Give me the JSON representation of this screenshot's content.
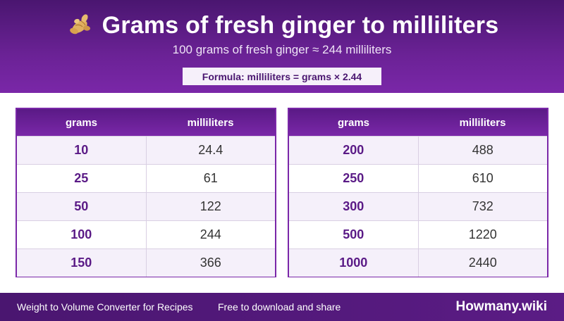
{
  "header": {
    "icon": "ginger-root-icon",
    "title": "Grams of fresh ginger to milliliters",
    "subtitle": "100 grams of fresh ginger ≈ 244 milliliters",
    "formula": "Formula: milliliters = grams × 2.44"
  },
  "tables": [
    {
      "headers": [
        "grams",
        "milliliters"
      ],
      "rows": [
        [
          "10",
          "24.4"
        ],
        [
          "25",
          "61"
        ],
        [
          "50",
          "122"
        ],
        [
          "100",
          "244"
        ],
        [
          "150",
          "366"
        ]
      ]
    },
    {
      "headers": [
        "grams",
        "milliliters"
      ],
      "rows": [
        [
          "200",
          "488"
        ],
        [
          "250",
          "610"
        ],
        [
          "300",
          "732"
        ],
        [
          "500",
          "1220"
        ],
        [
          "1000",
          "2440"
        ]
      ]
    }
  ],
  "footer": {
    "name": "Weight to Volume Converter for Recipes",
    "note": "Free to download and share",
    "brand": "Howmany.wiki"
  },
  "colors": {
    "accent": "#7a27a8",
    "dark": "#4a1670"
  }
}
